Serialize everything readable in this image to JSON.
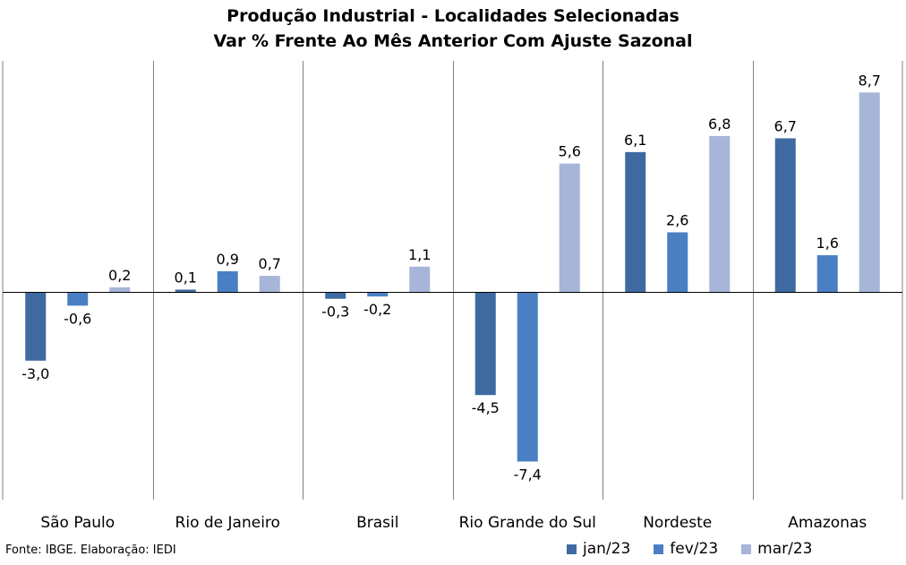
{
  "title_line1": "Produção Industrial - Localidades Selecionadas",
  "title_line2": "Var % Frente Ao Mês Anterior Com Ajuste Sazonal",
  "source": "Fonte: IBGE. Elaboração: IEDI",
  "chart_data": {
    "type": "bar",
    "title": "Produção Industrial - Localidades Selecionadas",
    "subtitle": "Var % Frente Ao Mês Anterior Com Ajuste Sazonal",
    "categories": [
      "São Paulo",
      "Rio de Janeiro",
      "Brasil",
      "Rio Grande do Sul",
      "Nordeste",
      "Amazonas"
    ],
    "series": [
      {
        "name": "jan/23",
        "color": "#3E6AA1",
        "values": [
          -3.0,
          0.1,
          -0.3,
          -4.5,
          6.1,
          6.7
        ],
        "labels": [
          "-3,0",
          "0,1",
          "-0,3",
          "-4,5",
          "6,1",
          "6,7"
        ]
      },
      {
        "name": "fev/23",
        "color": "#4A7FC4",
        "values": [
          -0.6,
          0.9,
          -0.2,
          -7.4,
          2.6,
          1.6
        ],
        "labels": [
          "-0,6",
          "0,9",
          "-0,2",
          "-7,4",
          "2,6",
          "1,6"
        ]
      },
      {
        "name": "mar/23",
        "color": "#A6B5D8",
        "values": [
          0.2,
          0.7,
          1.1,
          5.6,
          6.8,
          8.7
        ],
        "labels": [
          "0,2",
          "0,7",
          "1,1",
          "5,6",
          "6,8",
          "8,7"
        ]
      }
    ],
    "ylim": [
      -9.0,
      10.0
    ],
    "grid": false,
    "legend_position": "bottom-right"
  }
}
